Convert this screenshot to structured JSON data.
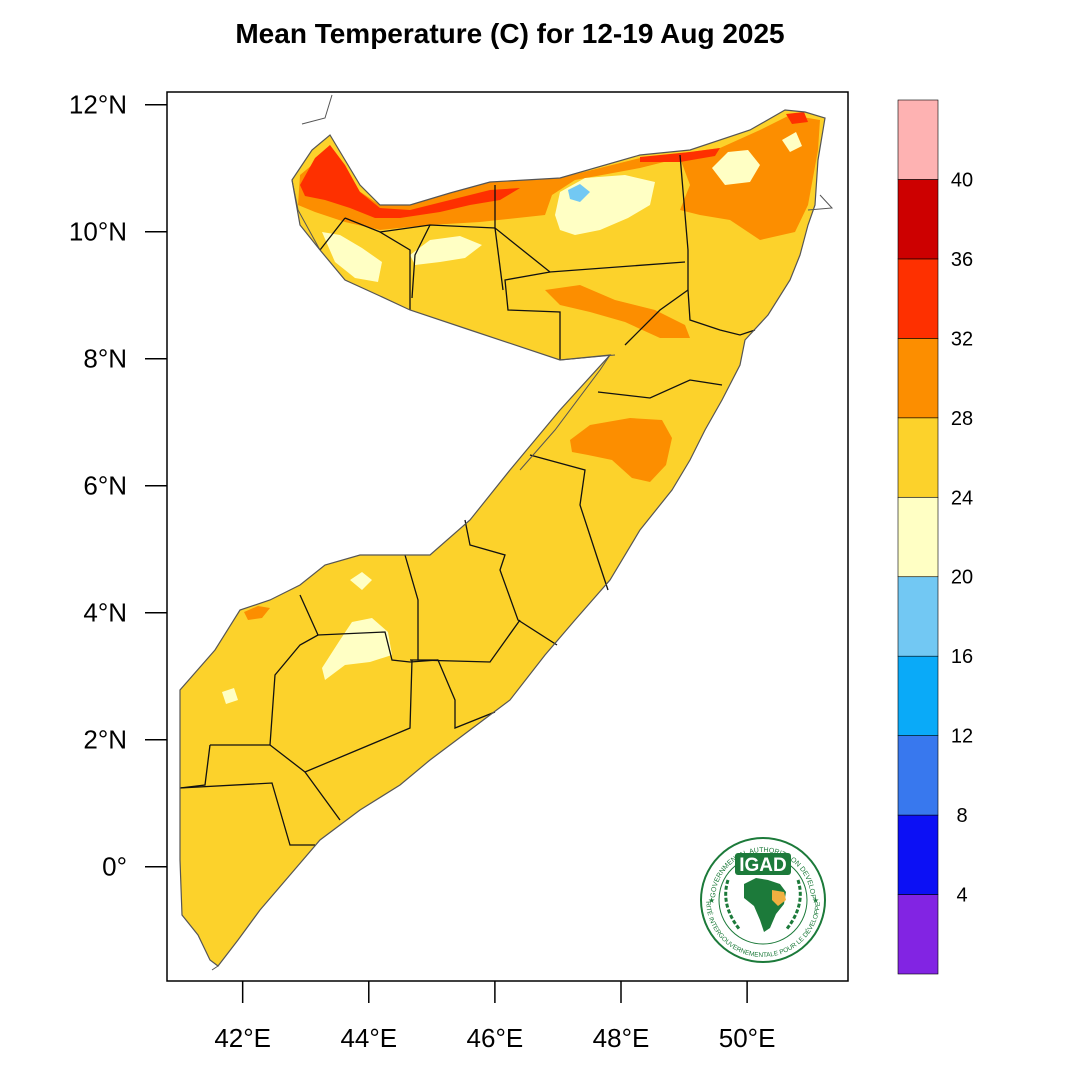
{
  "title": "Mean Temperature (C) for 12-19 Aug 2025",
  "map": {
    "region": "Somalia",
    "lat_range": [
      -1.8,
      12.2
    ],
    "lon_range": [
      40.8,
      51.6
    ],
    "y_ticks": [
      {
        "value": 12,
        "label": "12°N"
      },
      {
        "value": 10,
        "label": "10°N"
      },
      {
        "value": 8,
        "label": "8°N"
      },
      {
        "value": 6,
        "label": "6°N"
      },
      {
        "value": 4,
        "label": "4°N"
      },
      {
        "value": 2,
        "label": "2°N"
      },
      {
        "value": 0,
        "label": "0°"
      }
    ],
    "x_ticks": [
      {
        "value": 42,
        "label": "42°E"
      },
      {
        "value": 44,
        "label": "44°E"
      },
      {
        "value": 46,
        "label": "46°E"
      },
      {
        "value": 48,
        "label": "48°E"
      },
      {
        "value": 50,
        "label": "50°E"
      }
    ]
  },
  "colorbar": {
    "levels": [
      "4",
      "8",
      "12",
      "16",
      "20",
      "24",
      "28",
      "32",
      "36",
      "40"
    ],
    "colors": [
      "#8224e3",
      "#0c10f5",
      "#3878ee",
      "#0aaaf8",
      "#72c8f3",
      "#ffffc4",
      "#fcd22b",
      "#fc8e00",
      "#fe3000",
      "#cd0000",
      "#feb2b2"
    ]
  },
  "logo": {
    "acronym": "IGAD",
    "top_text": "INTERGOVERNMENTAL AUTHORITY ON DEVELOPMENT",
    "bottom_text": "AUTORITÉ INTERGOUVERNEMENTALE POUR LE DÉVELOPPEMENT"
  }
}
